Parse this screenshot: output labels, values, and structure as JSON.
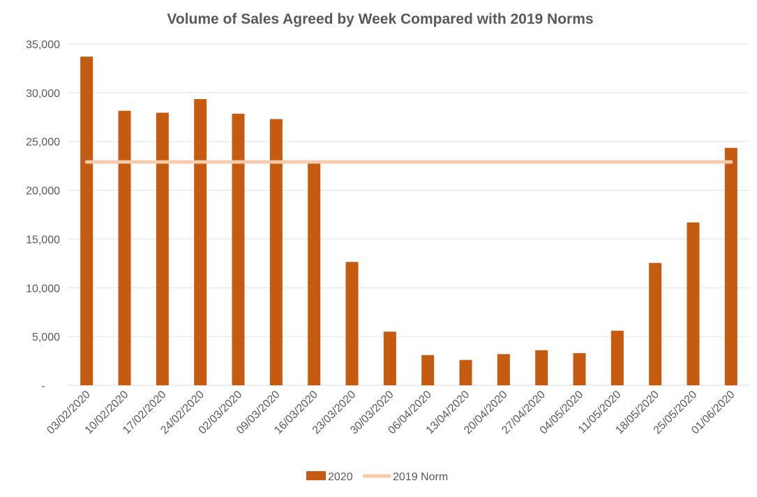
{
  "chart_data": {
    "type": "bar",
    "title": "Volume of Sales Agreed by Week Compared with 2019 Norms",
    "xlabel": "",
    "ylabel": "",
    "ylim": [
      0,
      35000
    ],
    "yticks": [
      "-",
      "5,000",
      "10,000",
      "15,000",
      "20,000",
      "25,000",
      "30,000",
      "35,000"
    ],
    "ytick_values": [
      0,
      5000,
      10000,
      15000,
      20000,
      25000,
      30000,
      35000
    ],
    "grid": true,
    "legend_position": "bottom",
    "categories": [
      "03/02/2020",
      "10/02/2020",
      "17/02/2020",
      "24/02/2020",
      "02/03/2020",
      "09/03/2020",
      "16/03/2020",
      "23/03/2020",
      "30/03/2020",
      "06/04/2020",
      "13/04/2020",
      "20/04/2020",
      "27/04/2020",
      "04/05/2020",
      "11/05/2020",
      "18/05/2020",
      "25/05/2020",
      "01/06/2020"
    ],
    "series": [
      {
        "name": "2020",
        "type": "bar",
        "color": "#C55A11",
        "values": [
          33700,
          28150,
          27950,
          29350,
          27850,
          27300,
          22850,
          12650,
          5500,
          3100,
          2600,
          3200,
          3600,
          3300,
          5600,
          12550,
          16700,
          24350
        ]
      },
      {
        "name": "2019 Norm",
        "type": "line",
        "color": "#F8CBAD",
        "values": [
          22900,
          22900,
          22900,
          22900,
          22900,
          22900,
          22900,
          22900,
          22900,
          22900,
          22900,
          22900,
          22900,
          22900,
          22900,
          22900,
          22900,
          22900
        ]
      }
    ]
  }
}
